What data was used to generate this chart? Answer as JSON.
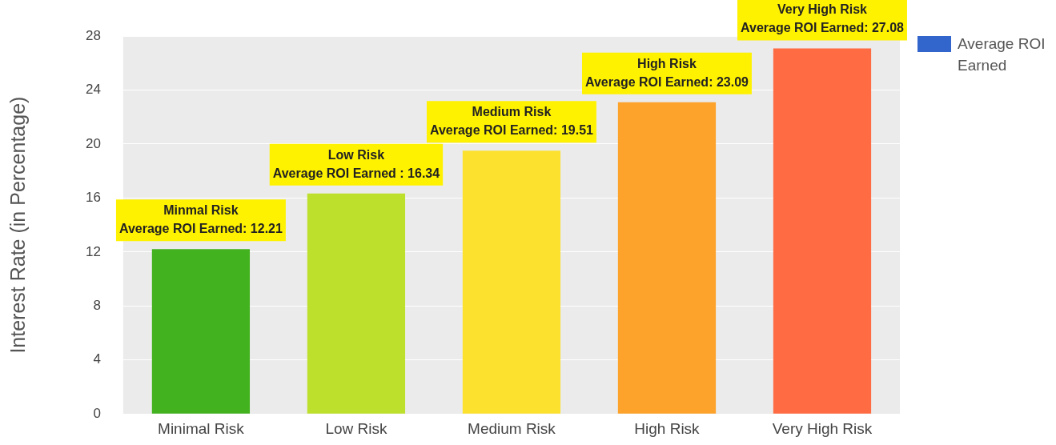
{
  "chart_data": {
    "type": "bar",
    "ylabel": "Interest Rate (in Percentage)",
    "categories": [
      "Minimal Risk",
      "Low Risk",
      "Medium Risk",
      "High Risk",
      "Very High Risk"
    ],
    "series": [
      {
        "name": "Average ROI Earned",
        "color": "#3366cc",
        "colors": [
          "#43b21f",
          "#bce02b",
          "#fce22f",
          "#fda22b",
          "#ff6b43"
        ],
        "values": [
          12.21,
          16.34,
          19.51,
          23.09,
          27.08
        ]
      }
    ],
    "ylim": [
      0,
      28
    ],
    "yticks": [
      0,
      4,
      8,
      12,
      16,
      20,
      24,
      28
    ],
    "grid": "y",
    "legend": "top right",
    "annotations": [
      {
        "text": "Minmal Risk\nAverage ROI Earned: 12.21",
        "x": "Minimal Risk",
        "y": 12.21
      },
      {
        "text": "Low Risk\nAverage ROI Earned : 16.34",
        "x": "Low Risk",
        "y": 16.34
      },
      {
        "text": "Medium Risk\nAverage ROI Earned: 19.51",
        "x": "Medium Risk",
        "y": 19.51
      },
      {
        "text": "High Risk\nAverage ROI Earned: 23.09",
        "x": "High Risk",
        "y": 23.09
      },
      {
        "text": "Very High Risk\nAverage ROI Earned: 27.08",
        "x": "Very High Risk",
        "y": 27.08
      }
    ]
  }
}
